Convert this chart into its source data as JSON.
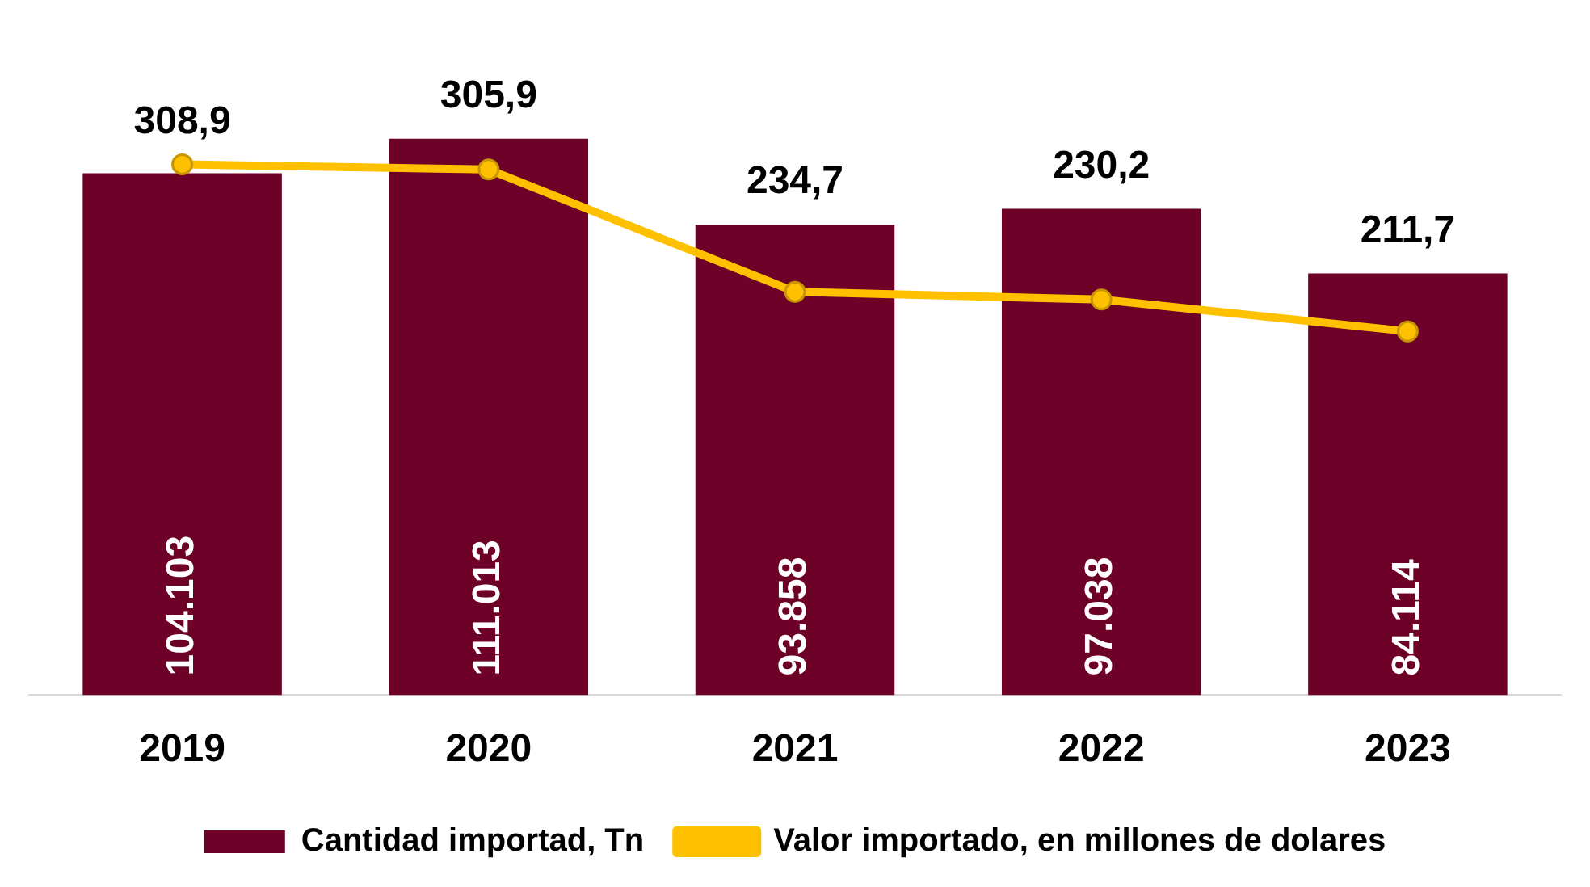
{
  "chart_data": {
    "type": "bar",
    "categories": [
      "2019",
      "2020",
      "2021",
      "2022",
      "2023"
    ],
    "series": [
      {
        "name": "Cantidad importad, Tn",
        "color": "#6d0128",
        "values": [
          104103,
          111013,
          93858,
          97038,
          84114
        ],
        "value_labels": [
          "104.103",
          "111.013",
          "93.858",
          "97.038",
          "84.114"
        ]
      },
      {
        "name": "Valor importado, en millones de dolares",
        "type": "line",
        "axis": "y2",
        "color": "#ffc000",
        "values": [
          308.9,
          305.9,
          234.7,
          230.2,
          211.7
        ],
        "value_labels": [
          "308,9",
          "305,9",
          "234,7",
          "230,2",
          "211,7"
        ]
      }
    ],
    "marker": "circle",
    "legend": "bottom",
    "grid": false,
    "tick_labels": "x"
  }
}
